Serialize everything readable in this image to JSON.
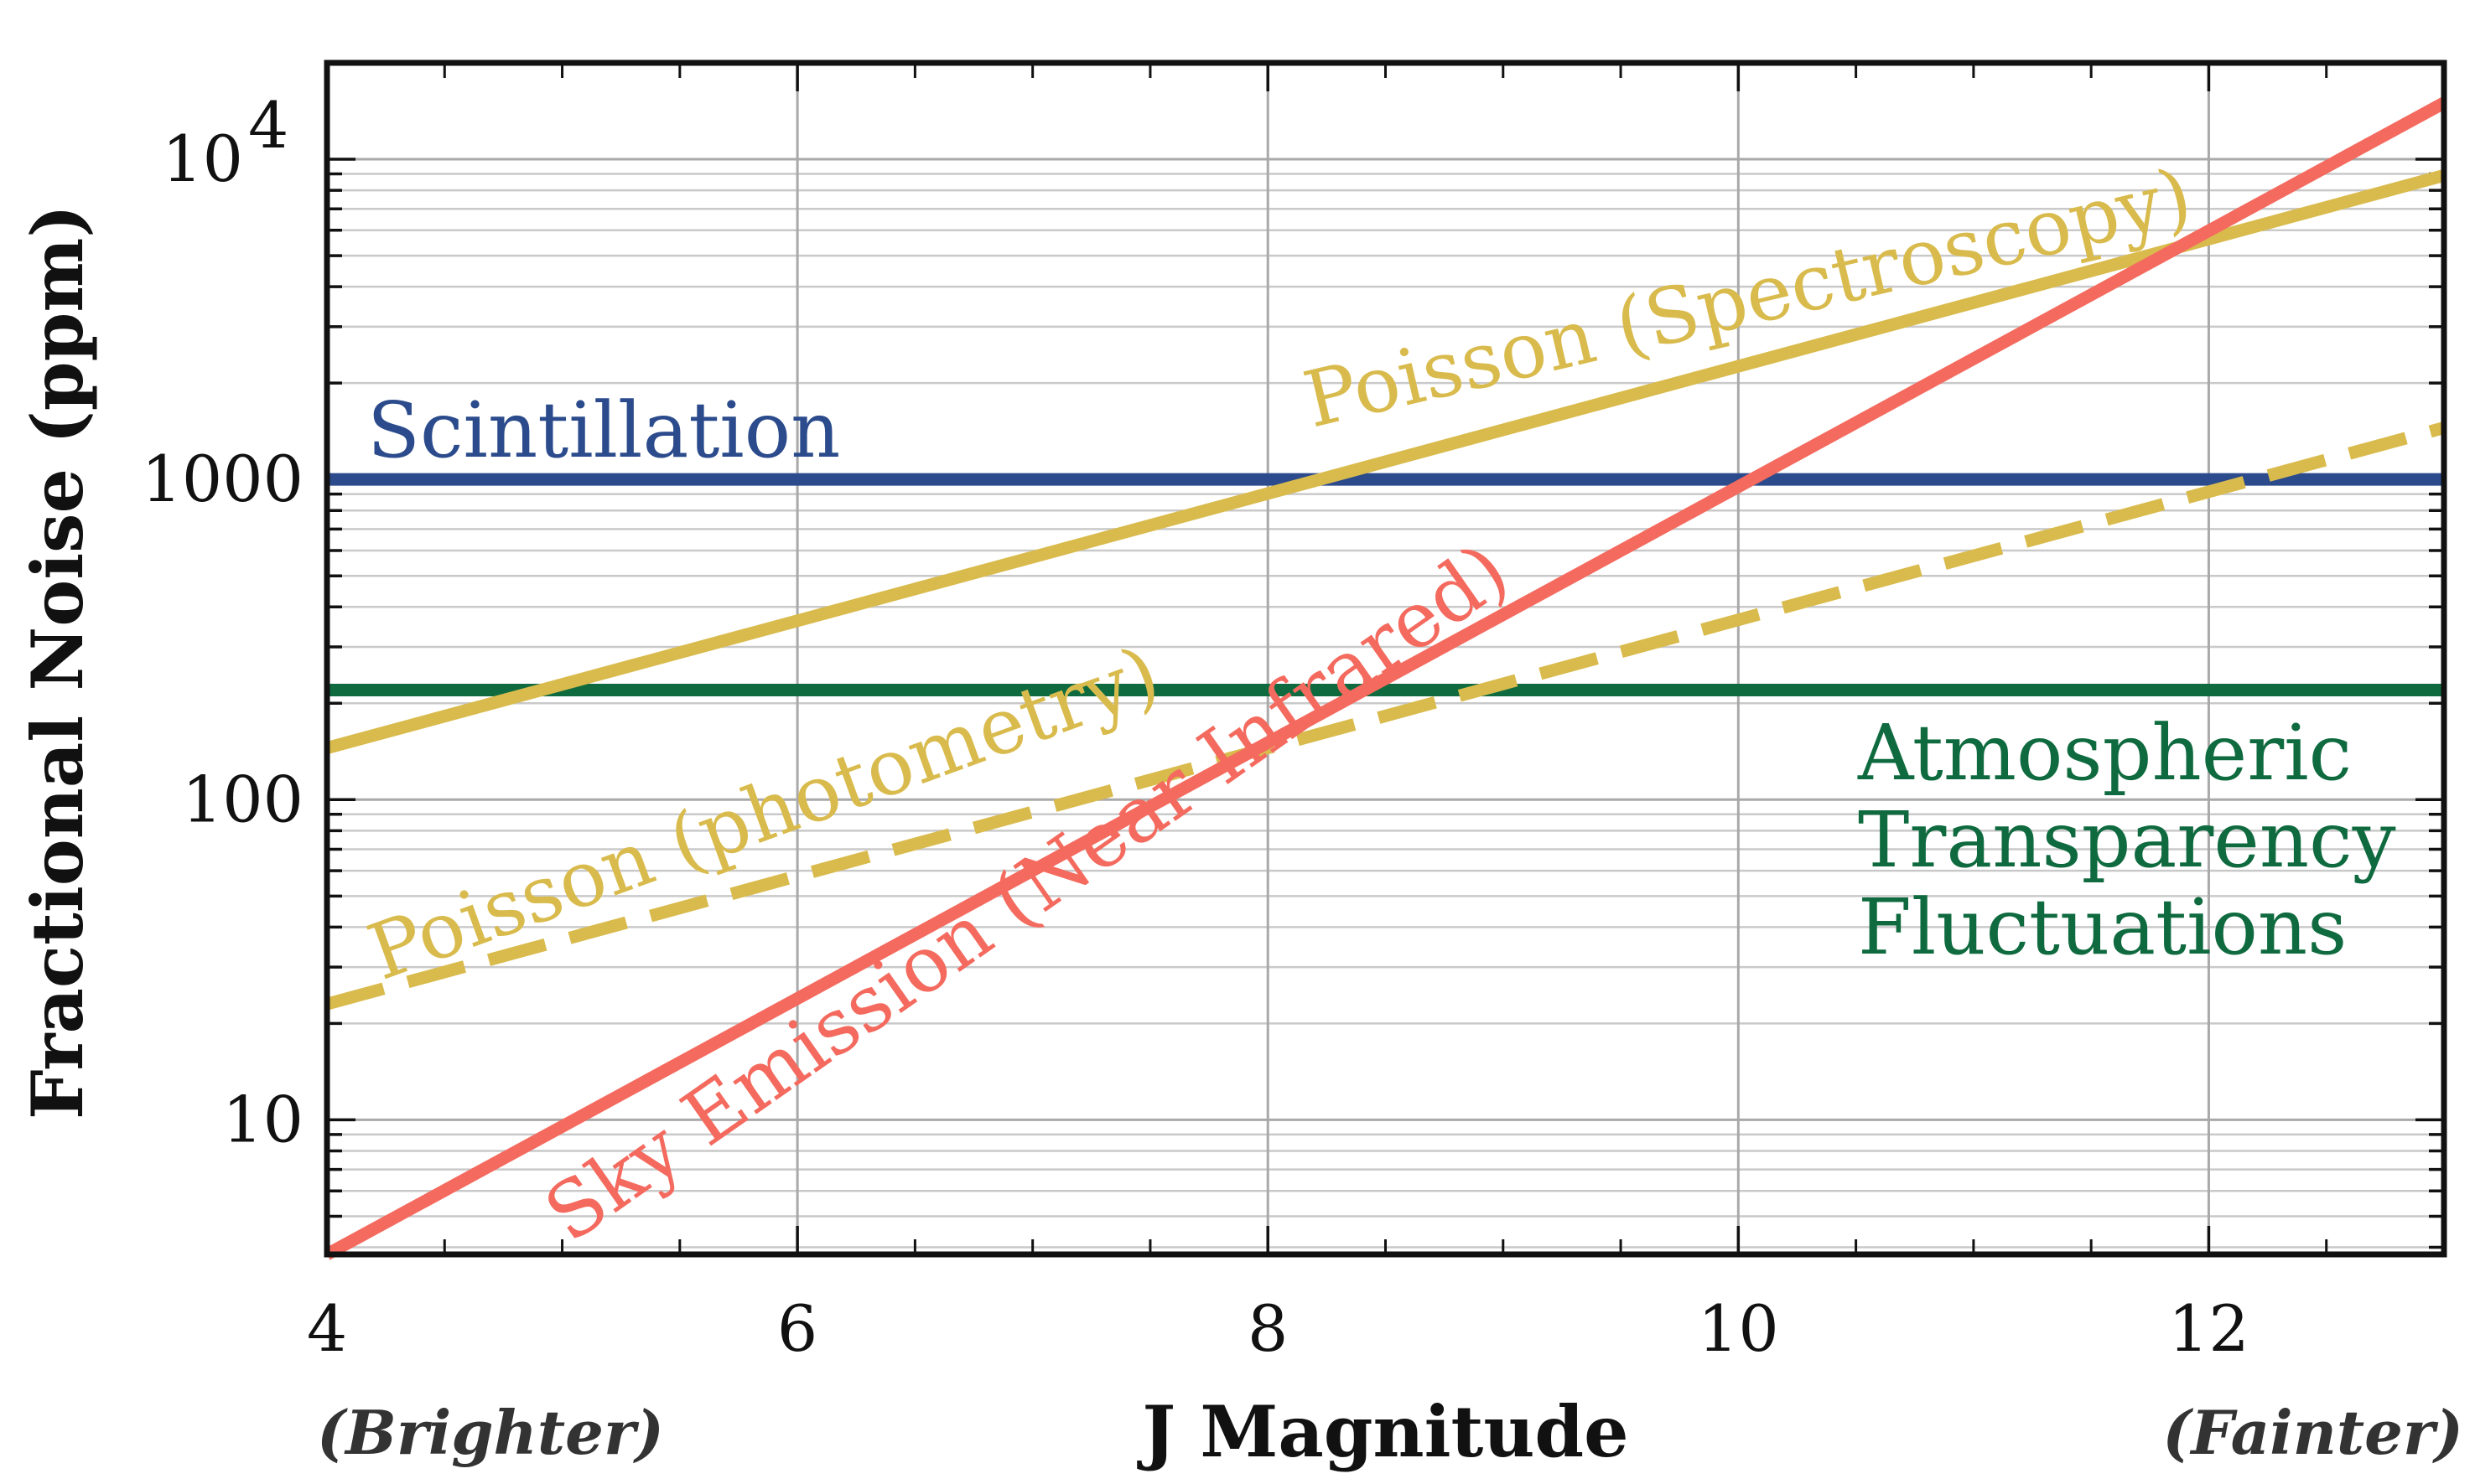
{
  "chart_data": {
    "type": "line",
    "title": "",
    "xlabel": "J Magnitude",
    "ylabel": "Fractional Noise (ppm)",
    "xlim": [
      4,
      13
    ],
    "ylim": [
      3.8,
      20000
    ],
    "yscale": "log",
    "grid": true,
    "x_note_left": "(Brighter)",
    "x_note_right": "(Fainter)",
    "x_ticks": [
      {
        "value": 4,
        "label": "4"
      },
      {
        "value": 6,
        "label": "6"
      },
      {
        "value": 8,
        "label": "8"
      },
      {
        "value": 10,
        "label": "10"
      },
      {
        "value": 12,
        "label": "12"
      }
    ],
    "y_ticks": [
      {
        "value": 10,
        "label": "10"
      },
      {
        "value": 100,
        "label": "100"
      },
      {
        "value": 1000,
        "label": "1000"
      },
      {
        "value": 10000,
        "label": "10",
        "exponent": "4"
      }
    ],
    "series": [
      {
        "name": "Scintillation",
        "label": "Scintillation",
        "color": "#2b4b8c",
        "dash": false,
        "x": [
          4,
          13
        ],
        "y": [
          1000,
          1000
        ]
      },
      {
        "name": "Atmospheric Transparency Fluctuations",
        "label_lines": [
          "Atmospheric",
          "Transparency",
          "Fluctuations"
        ],
        "color": "#0f6b3f",
        "dash": false,
        "x": [
          4,
          13
        ],
        "y": [
          220,
          220
        ]
      },
      {
        "name": "Poisson (Spectroscopy)",
        "label": "Poisson (Spectroscopy)",
        "color": "#d9bb4d",
        "dash": false,
        "x": [
          4,
          13
        ],
        "y": [
          145,
          8900
        ]
      },
      {
        "name": "Poisson (photometry)",
        "label": "Poisson (photometry)",
        "color": "#d9bb4d",
        "dash": true,
        "x": [
          4,
          13
        ],
        "y": [
          23,
          1450
        ]
      },
      {
        "name": "Sky Emission (Near-Infrared)",
        "label": "Sky Emission (Near-Infrared)",
        "color": "#f46a5e",
        "dash": false,
        "x": [
          4,
          13
        ],
        "y": [
          3.8,
          15000
        ]
      }
    ]
  }
}
